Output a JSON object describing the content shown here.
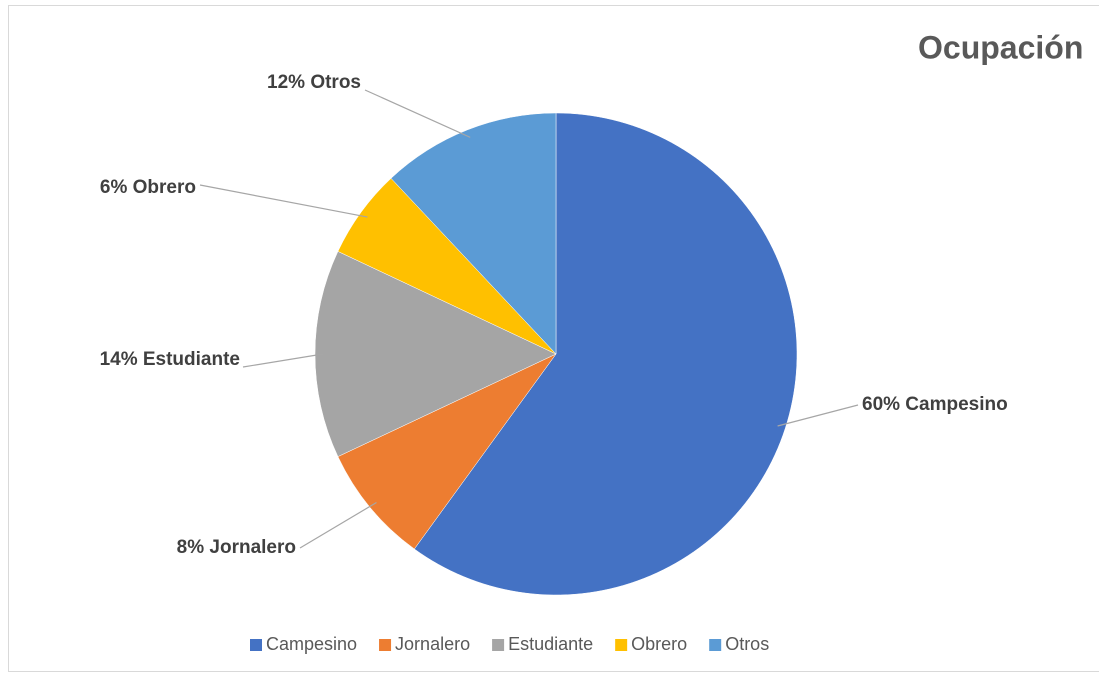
{
  "chart_data": {
    "type": "pie",
    "title": "Ocupación",
    "categories": [
      "Campesino",
      "Jornalero",
      "Estudiante",
      "Obrero",
      "Otros"
    ],
    "values": [
      60,
      8,
      14,
      6,
      12
    ],
    "value_labels": [
      "60% Campesino",
      "8% Jornalero",
      "14% Estudiante",
      "6% Obrero",
      "12% Otros"
    ],
    "colors": [
      "#4472c4",
      "#ed7d31",
      "#a5a5a5",
      "#ffc000",
      "#5b9bd5"
    ],
    "legend": "bottom"
  }
}
